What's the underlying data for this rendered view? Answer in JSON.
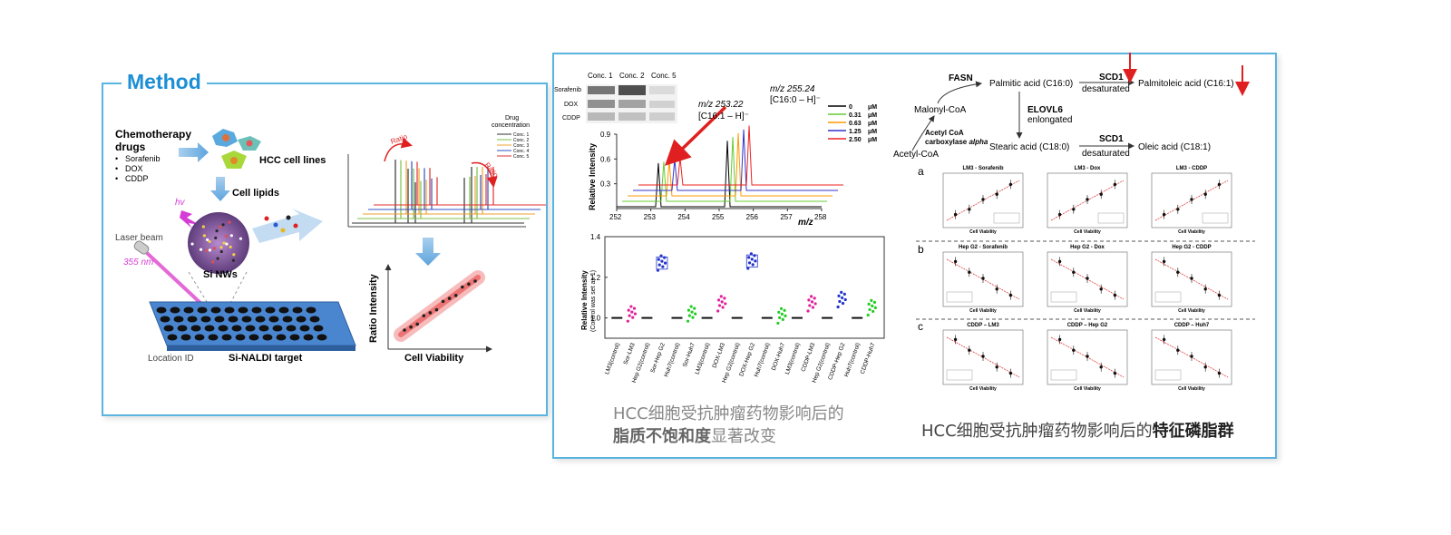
{
  "method": {
    "title": "Method",
    "chemo_title": "Chemotherapy",
    "chemo_title2": "drugs",
    "drugs": [
      "Sorafenib",
      "DOX",
      "CDDP"
    ],
    "hcc_label": "HCC cell lines",
    "lipids_label": "Cell lipids",
    "hv_label": "hv",
    "laser_label": "Laser beam",
    "laser_nm": "355 nm",
    "sinws_label": "Si NWs",
    "location_label": "Location ID",
    "target_label": "Si-NALDI target",
    "drug_conc_title": "Drug concentration",
    "conc_legend": [
      "Conc. 1",
      "Conc. 2",
      "Conc. 3",
      "Conc. 4",
      "Conc. 5"
    ],
    "ratio_label": "Ratio",
    "ratio_axis": "Ratio Intensity",
    "viability_axis": "Cell Viability",
    "colors": {
      "accent": "#1d8fd6",
      "border": "#5ab4e0"
    }
  },
  "western": {
    "columns": [
      "Conc. 1",
      "Conc. 2",
      "Conc. 5"
    ],
    "rows": [
      "Sorafenib",
      "DOX",
      "CDDP"
    ]
  },
  "spectrum": {
    "peak1": "m/z 253.22",
    "peak1_ion": "[C16:1 – H]⁻",
    "peak2": "m/z 255.24",
    "peak2_ion": "[C16:0 – H]⁻",
    "legend": [
      {
        "label": "0",
        "unit": "μM",
        "color": "#000000"
      },
      {
        "label": "0.31",
        "unit": "μM",
        "color": "#66cc33"
      },
      {
        "label": "0.63",
        "unit": "μM",
        "color": "#ff9900"
      },
      {
        "label": "1.25",
        "unit": "μM",
        "color": "#3333cc"
      },
      {
        "label": "2.50",
        "unit": "μM",
        "color": "#ee2222"
      }
    ]
  },
  "pathway": {
    "fasn": "FASN",
    "malonyl": "Malonyl-CoA",
    "acetyl": "Acetyl-CoA",
    "acc1": "Acetyl CoA",
    "acc2": "carboxylase alpha",
    "palmitic": "Palmitic acid (C16:0)",
    "scd1_a": "SCD1",
    "desat_a": "desaturated",
    "palmitoleic": "Palmitoleic acid (C16:1)",
    "elovl": "ELOVL6",
    "elongated": "enlongated",
    "stearic": "Stearic acid (C18:0)",
    "scd1_b": "SCD1",
    "desat_b": "desaturated",
    "oleic": "Oleic acid (C18:1)"
  },
  "panels": {
    "row_labels": [
      "a",
      "b",
      "c"
    ],
    "a_titles": [
      "LM3 - Sorafenib",
      "LM3 - Dox",
      "LM3 - CDDP"
    ],
    "b_titles": [
      "Hep G2 - Sorafenib",
      "Hep G2 - Dox",
      "Hep G2 - CDDP"
    ],
    "c_titles": [
      "CDDP – LM3",
      "CDDP – Hep G2",
      "CDDP – Huh7"
    ],
    "xlabel": "Cell Viability"
  },
  "captions": {
    "left_line1": "HCC细胞受抗肿瘤药物影响后的",
    "left_bold": "脂质不饱和度",
    "left_rest": "显著改变",
    "right_normal": "HCC细胞受抗肿瘤药物影响后的",
    "right_bold": "特征磷脂群"
  },
  "chart_data": [
    {
      "type": "line",
      "title": "",
      "xlabel": "m/z",
      "ylabel": "Relative Intensity",
      "xlim": [
        252,
        258
      ],
      "ylim": [
        0,
        0.9
      ],
      "x_ticks": [
        252,
        253,
        254,
        255,
        256,
        257,
        258
      ],
      "y_ticks": [
        0.3,
        0.6,
        0.9
      ],
      "series": [
        {
          "name": "0 μM",
          "peaks": [
            {
              "x": 253.22,
              "y": 0.55
            },
            {
              "x": 255.24,
              "y": 0.82
            }
          ]
        },
        {
          "name": "0.31 μM",
          "peaks": [
            {
              "x": 253.22,
              "y": 0.5
            },
            {
              "x": 255.24,
              "y": 0.8
            }
          ]
        },
        {
          "name": "0.63 μM",
          "peaks": [
            {
              "x": 253.22,
              "y": 0.45
            },
            {
              "x": 255.24,
              "y": 0.78
            }
          ]
        },
        {
          "name": "1.25 μM",
          "peaks": [
            {
              "x": 253.22,
              "y": 0.4
            },
            {
              "x": 255.24,
              "y": 0.76
            }
          ]
        },
        {
          "name": "2.50 μM",
          "peaks": [
            {
              "x": 253.22,
              "y": 0.35
            },
            {
              "x": 255.24,
              "y": 0.74
            }
          ]
        }
      ]
    },
    {
      "type": "scatter",
      "title": "",
      "xlabel": "",
      "ylabel": "Relative Intensity (Control was set as 1)",
      "ylim": [
        0.9,
        1.4
      ],
      "y_ticks": [
        1.0,
        1.2,
        1.4
      ],
      "categories": [
        "LM3(control)",
        "Sor-LM3",
        "Hep G2(control)",
        "Sor-Hep G2",
        "Huh7(control)",
        "Sor-Huh7",
        "LM3(control)",
        "DOX-LM3",
        "Hep G2(control)",
        "DOX-Hep G2",
        "Huh7(control)",
        "DOX-Huh7",
        "LM3(control)",
        "CDDP-LM3",
        "Hep G2(control)",
        "CDDP-Hep G2",
        "Huh7(control)",
        "CDDP-Huh7"
      ],
      "values": [
        1.0,
        1.02,
        1.0,
        1.27,
        1.0,
        1.02,
        1.0,
        1.07,
        1.0,
        1.28,
        1.0,
        1.01,
        1.0,
        1.07,
        1.0,
        1.09,
        1.0,
        1.05
      ],
      "colors": [
        "#111111",
        "#e0209a",
        "#111111",
        "#2233cc",
        "#111111",
        "#22cc22",
        "#111111",
        "#e0209a",
        "#111111",
        "#2233cc",
        "#111111",
        "#22cc22",
        "#111111",
        "#e0209a",
        "#111111",
        "#2233cc",
        "#111111",
        "#22cc22"
      ]
    }
  ]
}
